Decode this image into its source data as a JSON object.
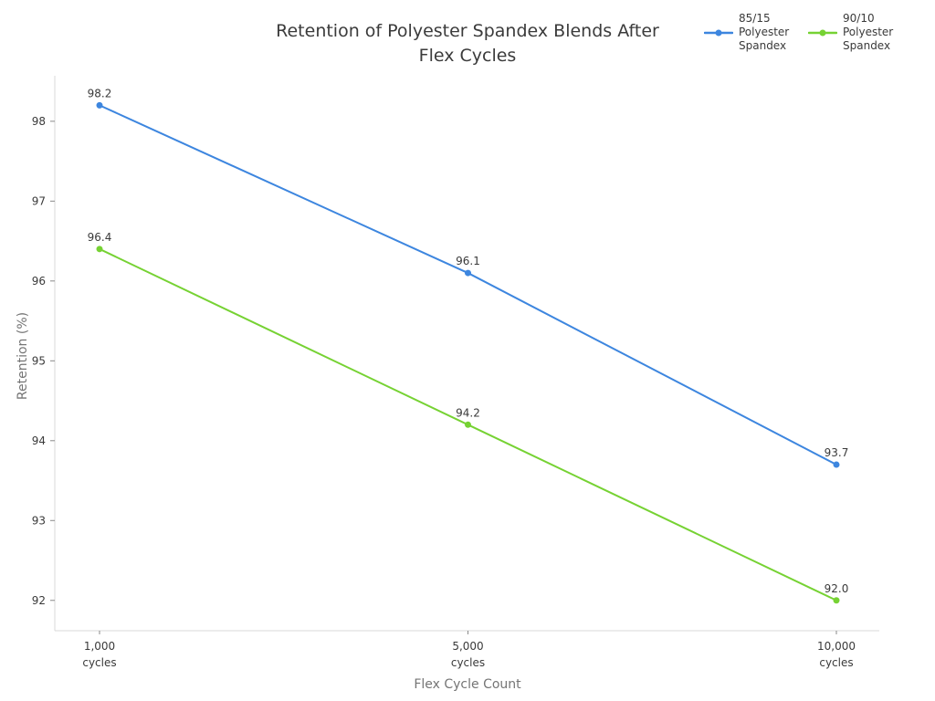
{
  "chart_data": {
    "type": "line",
    "title": "Retention of Polyester Spandex Blends After Flex Cycles",
    "xlabel": "Flex Cycle Count",
    "ylabel": "Retention (%)",
    "categories": [
      "1,000 cycles",
      "5,000 cycles",
      "10,000 cycles"
    ],
    "series": [
      {
        "name": "85/15 Polyester Spandex",
        "color": "#3d86df",
        "values": [
          98.2,
          96.1,
          93.7
        ]
      },
      {
        "name": "90/10 Polyester Spandex",
        "color": "#76d233",
        "values": [
          96.4,
          94.2,
          92.0
        ]
      }
    ],
    "data_labels": [
      "98.2",
      "96.1",
      "93.7",
      "96.4",
      "94.2",
      "92.0"
    ],
    "yticks": [
      92,
      93,
      94,
      95,
      96,
      97,
      98
    ],
    "ylim": [
      91.62,
      98.57
    ],
    "grid": false,
    "legend_position": "top-right",
    "axis_color": "#d9d9d9",
    "tick_color": "#8a8a8a",
    "text_color": "#3a3a3a"
  }
}
